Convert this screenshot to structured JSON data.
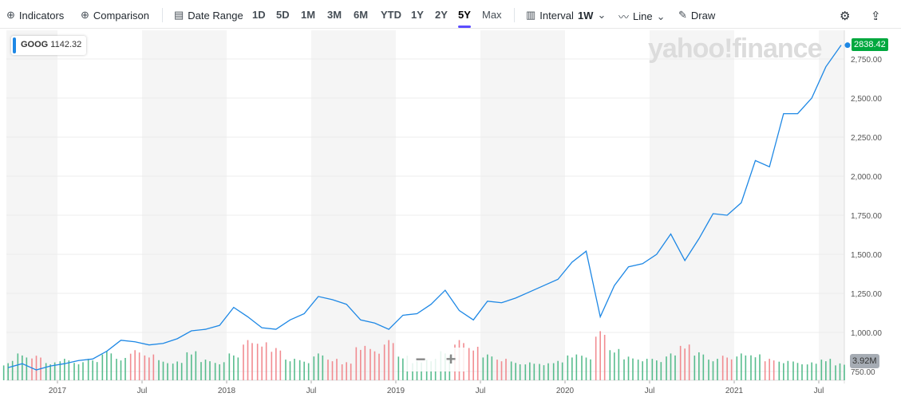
{
  "toolbar": {
    "indicators": "Indicators",
    "comparison": "Comparison",
    "date_range": "Date Range",
    "ranges": [
      "1D",
      "5D",
      "1M",
      "3M",
      "6M",
      "YTD",
      "1Y",
      "2Y",
      "5Y",
      "Max"
    ],
    "active_range": "5Y",
    "interval_label": "Interval",
    "interval_value": "1W",
    "line_label": "Line",
    "draw_label": "Draw"
  },
  "symbol_label": "GOOG",
  "symbol_value": "1142.32",
  "watermark": "yahoo!finance",
  "current_price": "2838.42",
  "current_volume": "3.92M",
  "zoom": {
    "minus": "−",
    "plus": "+"
  },
  "colors": {
    "line": "#1e88e5",
    "up": "#3bb27a",
    "down": "#f0787e",
    "price_tag": "#00a83e"
  },
  "chart_data": {
    "type": "line",
    "y_ticks": [
      "750.00",
      "1,000.00",
      "1,250.00",
      "1,500.00",
      "1,750.00",
      "2,000.00",
      "2,250.00",
      "2,500.00",
      "2,750.00"
    ],
    "ylim": [
      750,
      2900
    ],
    "x_ticks": [
      "2017",
      "Jul",
      "2018",
      "Jul",
      "2019",
      "Jul",
      "2020",
      "Jul",
      "2021",
      "Jul"
    ],
    "dates": [
      "2016-09",
      "2016-10",
      "2016-11",
      "2016-12",
      "2017-01",
      "2017-02",
      "2017-03",
      "2017-04",
      "2017-05",
      "2017-06",
      "2017-07",
      "2017-08",
      "2017-09",
      "2017-10",
      "2017-11",
      "2017-12",
      "2018-01",
      "2018-02",
      "2018-03",
      "2018-04",
      "2018-05",
      "2018-06",
      "2018-07",
      "2018-08",
      "2018-09",
      "2018-10",
      "2018-11",
      "2018-12",
      "2019-01",
      "2019-02",
      "2019-03",
      "2019-04",
      "2019-05",
      "2019-06",
      "2019-07",
      "2019-08",
      "2019-09",
      "2019-10",
      "2019-11",
      "2019-12",
      "2020-01",
      "2020-02",
      "2020-03",
      "2020-04",
      "2020-05",
      "2020-06",
      "2020-07",
      "2020-08",
      "2020-09",
      "2020-10",
      "2020-11",
      "2020-12",
      "2021-01",
      "2021-02",
      "2021-03",
      "2021-04",
      "2021-05",
      "2021-06",
      "2021-07",
      "2021-08"
    ],
    "close": [
      775,
      800,
      760,
      785,
      800,
      820,
      830,
      880,
      950,
      940,
      920,
      930,
      960,
      1010,
      1020,
      1045,
      1160,
      1100,
      1030,
      1020,
      1080,
      1120,
      1230,
      1210,
      1180,
      1080,
      1060,
      1020,
      1110,
      1120,
      1180,
      1270,
      1140,
      1080,
      1200,
      1190,
      1220,
      1260,
      1300,
      1340,
      1450,
      1520,
      1100,
      1300,
      1420,
      1440,
      1500,
      1630,
      1460,
      1600,
      1760,
      1750,
      1830,
      2100,
      2060,
      2400,
      2400,
      2500,
      2700,
      2838.42
    ],
    "volume_m": [
      4.5,
      6.0,
      5.5,
      4.0,
      5.0,
      4.2,
      4.8,
      6.5,
      5.0,
      7.0,
      6.0,
      4.5,
      4.2,
      6.5,
      4.8,
      4.2,
      6.0,
      9.0,
      8.5,
      7.5,
      5.0,
      4.5,
      6.0,
      4.8,
      4.2,
      8.0,
      7.0,
      9.0,
      5.5,
      4.5,
      5.0,
      6.5,
      9.0,
      7.5,
      6.0,
      5.0,
      4.2,
      4.0,
      3.8,
      4.5,
      6.0,
      5.5,
      11.0,
      7.0,
      5.5,
      5.0,
      4.8,
      6.0,
      8.0,
      6.5,
      5.0,
      5.5,
      6.0,
      5.8,
      5.0,
      4.5,
      4.2,
      4.0,
      4.8,
      3.92
    ]
  }
}
